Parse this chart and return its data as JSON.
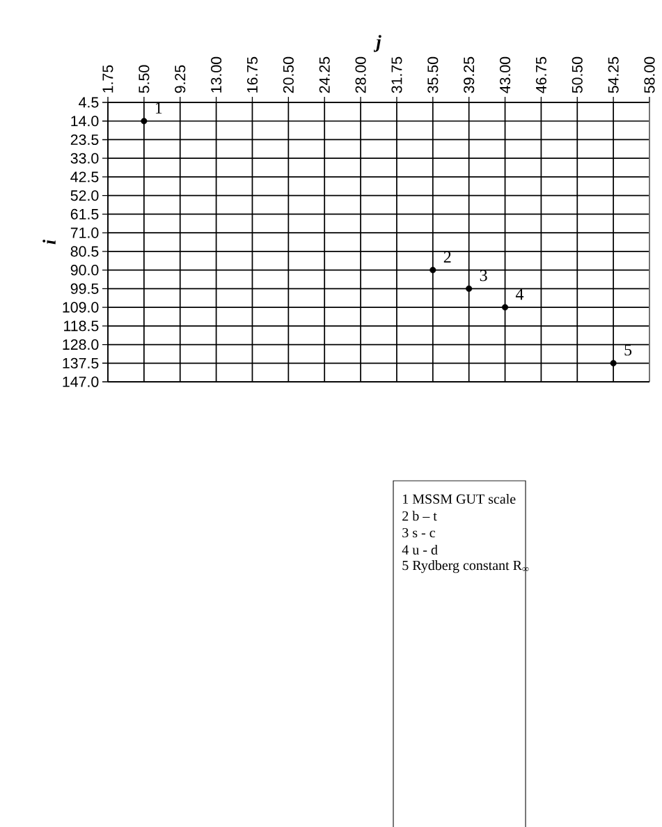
{
  "chart_data": {
    "type": "scatter",
    "xlabel": "j",
    "ylabel": "i",
    "x": [
      5.5,
      35.5,
      39.25,
      43.0,
      54.25
    ],
    "values": [
      14.0,
      90.0,
      99.5,
      109.0,
      137.5
    ],
    "color": "#000000",
    "marker": "circle",
    "grid": true,
    "xlim": [
      1.75,
      58.0
    ],
    "xticks": [
      1.75,
      {
        "value": 5.5,
        "label": "5.50"
      },
      9.25,
      {
        "value": 13.0,
        "label": "13.00"
      },
      16.75,
      {
        "value": 20.5,
        "label": "20.50"
      },
      24.25,
      {
        "value": 28.0,
        "label": "28.00"
      },
      31.75,
      {
        "value": 35.5,
        "label": "35.50"
      },
      39.25,
      {
        "value": 43.0,
        "label": "43.00"
      },
      46.75,
      {
        "value": 50.5,
        "label": "50.50"
      },
      54.25,
      {
        "value": 58.0,
        "label": "58.00"
      }
    ],
    "ylim": [
      147.0,
      4.5
    ],
    "yticks": [
      4.5,
      {
        "value": 14.0,
        "label": "14.0"
      },
      23.5,
      {
        "value": 33.0,
        "label": "33.0"
      },
      42.5,
      {
        "value": 52.0,
        "label": "52.0"
      },
      61.5,
      {
        "value": 71.0,
        "label": "71.0"
      },
      80.5,
      {
        "value": 90.0,
        "label": "90.0"
      },
      99.5,
      {
        "value": 109.0,
        "label": "109.0"
      },
      118.5,
      {
        "value": 128.0,
        "label": "128.0"
      },
      137.5,
      {
        "value": 147.0,
        "label": "147.0"
      }
    ],
    "annotations": [
      {
        "text": "1",
        "x": 5.5,
        "y": 14.0
      },
      {
        "text": "2",
        "x": 35.5,
        "y": 90.0
      },
      {
        "text": "3",
        "x": 39.25,
        "y": 99.5
      },
      {
        "text": "4",
        "x": 43.0,
        "y": 109.0
      },
      {
        "text": "5",
        "x": 54.25,
        "y": 137.5
      },
      "1  MSSM GUT scale",
      "2  b – t",
      "3  s - c",
      "4  u - d",
      "5  Rydberg constant R$_{∞}$"
    ]
  }
}
